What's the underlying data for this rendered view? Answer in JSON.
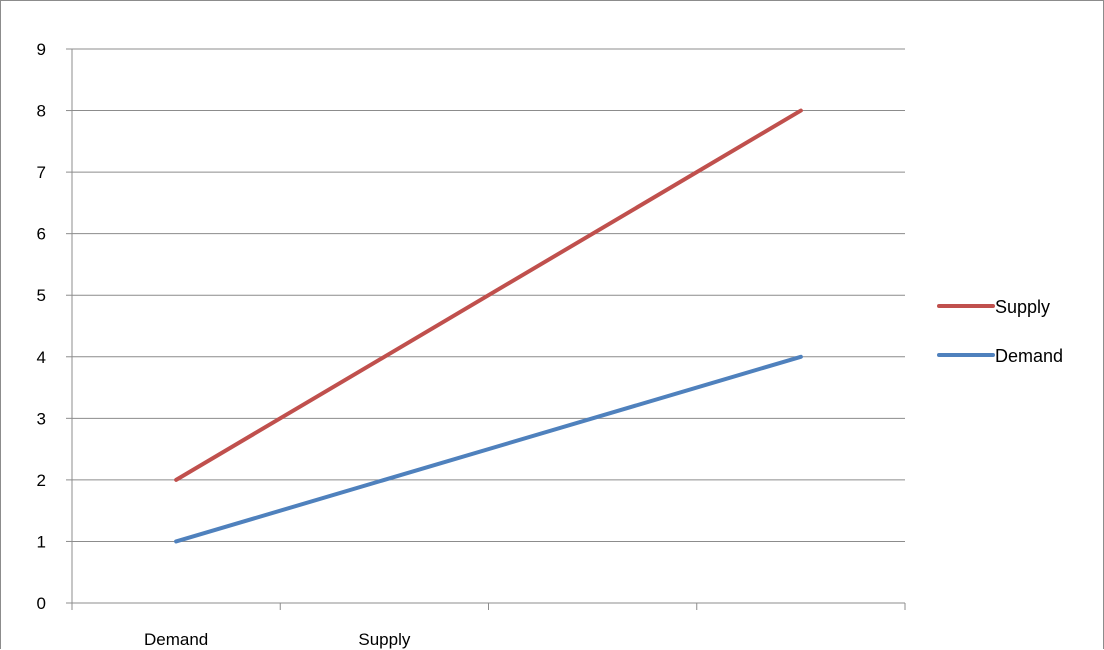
{
  "chart_data": {
    "type": "line",
    "title": "",
    "xlabel": "",
    "ylabel": "",
    "x_tick_labels": [
      "Demand",
      "Supply"
    ],
    "ylim": [
      0,
      9
    ],
    "y_ticks": [
      0,
      1,
      2,
      3,
      4,
      5,
      6,
      7,
      8,
      9
    ],
    "x_categories": 4,
    "series": [
      {
        "name": "Supply",
        "color": "#c0504d",
        "points": [
          [
            0.5,
            2
          ],
          [
            3.5,
            8
          ]
        ]
      },
      {
        "name": "Demand",
        "color": "#4f81bd",
        "points": [
          [
            0.5,
            1
          ],
          [
            3.5,
            4
          ]
        ]
      }
    ],
    "grid": "horizontal",
    "legend_position": "right"
  }
}
